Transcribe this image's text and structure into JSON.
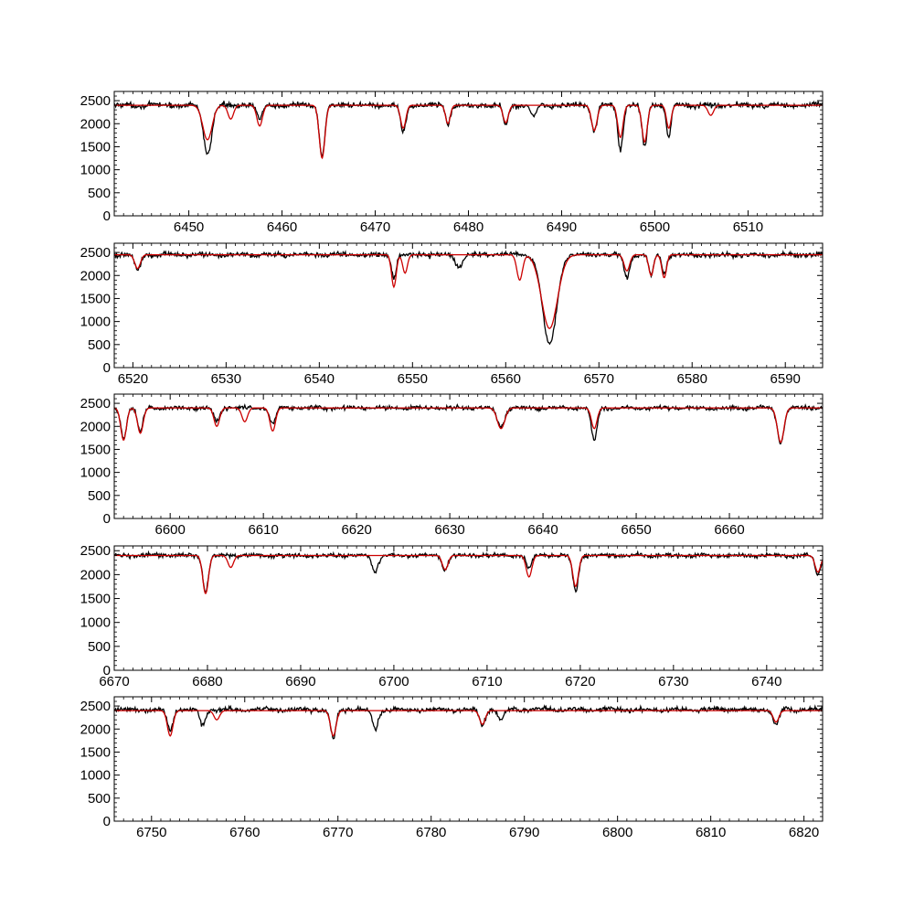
{
  "chart_data": [
    {
      "type": "line",
      "xlim": [
        6442,
        6518
      ],
      "ylim": [
        0,
        2700
      ],
      "xticks": [
        6450,
        6460,
        6470,
        6480,
        6490,
        6500,
        6510
      ],
      "yticks": [
        0,
        500,
        1000,
        1500,
        2000,
        2500
      ],
      "grid": false,
      "continuum": 2400,
      "series": [
        {
          "color": "#000000",
          "role": "observed",
          "base": 2400,
          "noise": 90,
          "lines": [
            [
              6452.0,
              1050,
              0.45
            ],
            [
              6464.3,
              1100,
              0.3
            ],
            [
              6473.0,
              600,
              0.28
            ],
            [
              6477.8,
              400,
              0.25
            ],
            [
              6484.0,
              450,
              0.28
            ],
            [
              6493.5,
              550,
              0.3
            ],
            [
              6496.3,
              950,
              0.28
            ],
            [
              6498.9,
              900,
              0.28
            ],
            [
              6501.5,
              700,
              0.25
            ],
            [
              6457.6,
              300,
              0.3
            ],
            [
              6487.0,
              250,
              0.3
            ]
          ]
        },
        {
          "color": "#cc0000",
          "role": "model",
          "base": 2400,
          "noise": 0,
          "lines": [
            [
              6452.0,
              750,
              0.5
            ],
            [
              6464.3,
              1150,
              0.3
            ],
            [
              6473.0,
              500,
              0.28
            ],
            [
              6477.8,
              400,
              0.25
            ],
            [
              6484.0,
              380,
              0.28
            ],
            [
              6493.5,
              550,
              0.3
            ],
            [
              6496.3,
              700,
              0.28
            ],
            [
              6498.9,
              800,
              0.28
            ],
            [
              6501.5,
              500,
              0.25
            ],
            [
              6457.6,
              450,
              0.3
            ],
            [
              6454.5,
              300,
              0.3
            ],
            [
              6506.0,
              220,
              0.3
            ]
          ]
        }
      ]
    },
    {
      "type": "line",
      "xlim": [
        6518,
        6594
      ],
      "ylim": [
        0,
        2700
      ],
      "xticks": [
        6520,
        6530,
        6540,
        6550,
        6560,
        6570,
        6580,
        6590
      ],
      "yticks": [
        0,
        500,
        1000,
        1500,
        2000,
        2500
      ],
      "grid": false,
      "continuum": 2450,
      "series": [
        {
          "color": "#000000",
          "role": "observed",
          "base": 2450,
          "noise": 80,
          "lines": [
            [
              6564.7,
              1950,
              0.75
            ],
            [
              6548.0,
              500,
              0.25
            ],
            [
              6573.0,
              500,
              0.3
            ],
            [
              6575.6,
              450,
              0.25
            ],
            [
              6577.0,
              400,
              0.25
            ],
            [
              6520.5,
              350,
              0.3
            ],
            [
              6555.0,
              250,
              0.4
            ]
          ]
        },
        {
          "color": "#cc0000",
          "role": "model",
          "base": 2450,
          "noise": 0,
          "lines": [
            [
              6564.7,
              1600,
              0.85
            ],
            [
              6548.0,
              700,
              0.25
            ],
            [
              6549.2,
              400,
              0.25
            ],
            [
              6561.5,
              550,
              0.3
            ],
            [
              6573.0,
              350,
              0.3
            ],
            [
              6575.6,
              450,
              0.25
            ],
            [
              6577.0,
              500,
              0.25
            ],
            [
              6520.5,
              300,
              0.3
            ]
          ]
        }
      ]
    },
    {
      "type": "line",
      "xlim": [
        6594,
        6670
      ],
      "ylim": [
        0,
        2700
      ],
      "xticks": [
        6600,
        6610,
        6620,
        6630,
        6640,
        6650,
        6660
      ],
      "yticks": [
        0,
        500,
        1000,
        1500,
        2000,
        2500
      ],
      "grid": false,
      "continuum": 2400,
      "series": [
        {
          "color": "#000000",
          "role": "observed",
          "base": 2400,
          "noise": 70,
          "lines": [
            [
              6595.0,
              650,
              0.3
            ],
            [
              6596.8,
              500,
              0.3
            ],
            [
              6645.5,
              700,
              0.3
            ],
            [
              6665.5,
              750,
              0.35
            ],
            [
              6635.5,
              400,
              0.4
            ],
            [
              6611.0,
              350,
              0.3
            ],
            [
              6605.0,
              300,
              0.3
            ]
          ]
        },
        {
          "color": "#cc0000",
          "role": "model",
          "base": 2400,
          "noise": 0,
          "lines": [
            [
              6595.0,
              700,
              0.3
            ],
            [
              6596.8,
              550,
              0.3
            ],
            [
              6645.5,
              450,
              0.3
            ],
            [
              6665.5,
              750,
              0.35
            ],
            [
              6635.5,
              450,
              0.4
            ],
            [
              6611.0,
              500,
              0.3
            ],
            [
              6605.0,
              400,
              0.3
            ],
            [
              6608.0,
              300,
              0.3
            ]
          ]
        }
      ]
    },
    {
      "type": "line",
      "xlim": [
        6670,
        6746
      ],
      "ylim": [
        0,
        2600
      ],
      "xticks": [
        6670,
        6680,
        6690,
        6700,
        6710,
        6720,
        6730,
        6740
      ],
      "yticks": [
        0,
        500,
        1000,
        1500,
        2000,
        2500
      ],
      "grid": false,
      "continuum": 2400,
      "series": [
        {
          "color": "#000000",
          "role": "observed",
          "base": 2400,
          "noise": 70,
          "lines": [
            [
              6679.8,
              750,
              0.3
            ],
            [
              6719.5,
              750,
              0.3
            ],
            [
              6698.0,
              350,
              0.3
            ],
            [
              6705.5,
              300,
              0.3
            ],
            [
              6714.5,
              250,
              0.3
            ],
            [
              6745.5,
              400,
              0.3
            ]
          ]
        },
        {
          "color": "#cc0000",
          "role": "model",
          "base": 2400,
          "noise": 0,
          "lines": [
            [
              6679.8,
              800,
              0.3
            ],
            [
              6719.5,
              650,
              0.3
            ],
            [
              6714.5,
              450,
              0.3
            ],
            [
              6705.5,
              300,
              0.3
            ],
            [
              6682.5,
              250,
              0.3
            ],
            [
              6745.5,
              350,
              0.3
            ]
          ]
        }
      ]
    },
    {
      "type": "line",
      "xlim": [
        6746,
        6822
      ],
      "ylim": [
        0,
        2700
      ],
      "xticks": [
        6750,
        6760,
        6770,
        6780,
        6790,
        6800,
        6810,
        6820
      ],
      "yticks": [
        0,
        500,
        1000,
        1500,
        2000,
        2500
      ],
      "grid": false,
      "continuum": 2400,
      "series": [
        {
          "color": "#000000",
          "role": "observed",
          "base": 2420,
          "noise": 80,
          "lines": [
            [
              6752.0,
              450,
              0.3
            ],
            [
              6755.5,
              350,
              0.3
            ],
            [
              6769.5,
              600,
              0.3
            ],
            [
              6774.0,
              450,
              0.3
            ],
            [
              6785.5,
              350,
              0.3
            ],
            [
              6787.5,
              250,
              0.3
            ],
            [
              6817.0,
              350,
              0.3
            ]
          ]
        },
        {
          "color": "#cc0000",
          "role": "model",
          "base": 2400,
          "noise": 0,
          "lines": [
            [
              6752.0,
              550,
              0.3
            ],
            [
              6769.5,
              550,
              0.3
            ],
            [
              6785.5,
              300,
              0.3
            ],
            [
              6757.0,
              200,
              0.3
            ],
            [
              6817.0,
              250,
              0.3
            ]
          ]
        }
      ]
    }
  ]
}
